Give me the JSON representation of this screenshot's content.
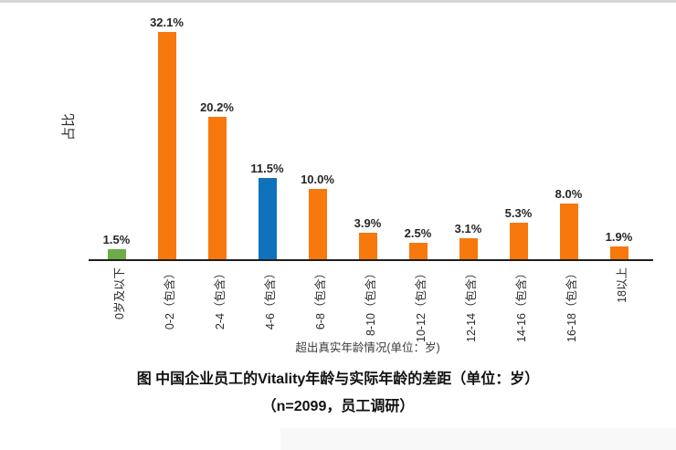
{
  "chart_data": {
    "type": "bar",
    "title": "图 中国企业员工的Vitality年龄与实际年龄的差距（单位：岁）",
    "subtitle": "（n=2099，员工调研）",
    "xlabel": "超出真实年龄情况(单位：岁)",
    "ylabel": "占比",
    "categories": [
      "0岁及以下",
      "0-2（包含）",
      "2-4（包含）",
      "4-6（包含）",
      "6-8（包含）",
      "8-10（包含）",
      "10-12（包含）",
      "12-14（包含）",
      "14-16（包含）",
      "16-18（包含）",
      "18以上"
    ],
    "values": [
      1.5,
      32.1,
      20.2,
      11.5,
      10.0,
      3.9,
      2.5,
      3.1,
      5.3,
      8.0,
      1.9
    ],
    "labels": [
      "1.5%",
      "32.1%",
      "20.2%",
      "11.5%",
      "10.0%",
      "3.9%",
      "2.5%",
      "3.1%",
      "5.3%",
      "8.0%",
      "1.9%"
    ],
    "bar_colors": [
      "#6EAC47",
      "#F7780D",
      "#F7780D",
      "#1072BA",
      "#F7780D",
      "#F7780D",
      "#F7780D",
      "#F7780D",
      "#F7780D",
      "#F7780D",
      "#F7780D"
    ],
    "colors": {
      "orange": "#F7780D",
      "green": "#6EAC47",
      "blue": "#1072BA",
      "axis": "#1F1F1F"
    },
    "ylim": [
      0,
      35
    ],
    "grid": false,
    "legend": null,
    "bar_label_position": "above",
    "x_tick_rotation_deg": -90
  }
}
